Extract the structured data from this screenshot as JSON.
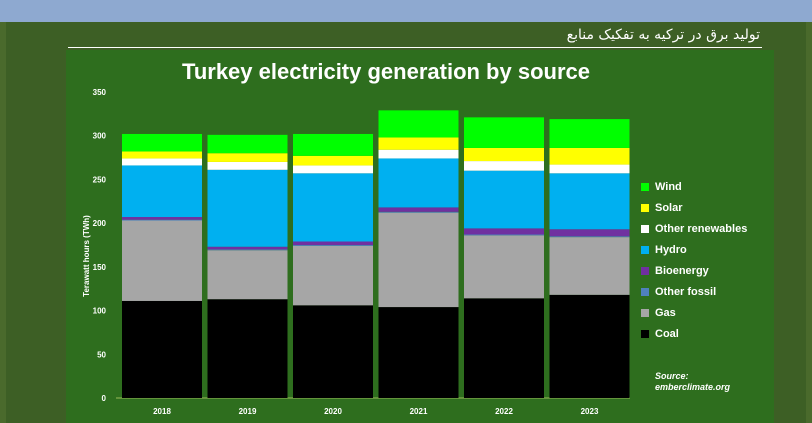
{
  "header": {
    "title": "تولید برق در ترکیه به تفکیک منابع"
  },
  "chart_data": {
    "type": "bar",
    "stacked": true,
    "title": "Turkey electricity generation by source",
    "ylabel": "Terawatt hours (TWh)",
    "xlabel": "",
    "ylim": [
      0,
      350
    ],
    "yticks": [
      0,
      50,
      100,
      150,
      200,
      250,
      300,
      350
    ],
    "categories": [
      "2018",
      "2019",
      "2020",
      "2021",
      "2022",
      "2023"
    ],
    "series": [
      {
        "name": "Coal",
        "color": "#000000",
        "values": [
          111,
          113,
          106,
          104,
          114,
          118
        ]
      },
      {
        "name": "Gas",
        "color": "#a6a6a6",
        "values": [
          92,
          56,
          68,
          108,
          72,
          66
        ]
      },
      {
        "name": "Other fossil",
        "color": "#4f81bd",
        "values": [
          1,
          1,
          1,
          1,
          1,
          1
        ]
      },
      {
        "name": "Bioenergy",
        "color": "#7030a0",
        "values": [
          3,
          3,
          4,
          5,
          7,
          8
        ]
      },
      {
        "name": "Hydro",
        "color": "#00b0f0",
        "values": [
          59,
          88,
          78,
          56,
          66,
          64
        ]
      },
      {
        "name": "Other renewables",
        "color": "#ffffff",
        "values": [
          8,
          9,
          9,
          10,
          11,
          10
        ]
      },
      {
        "name": "Solar",
        "color": "#ffff00",
        "values": [
          8,
          10,
          11,
          14,
          15,
          19
        ]
      },
      {
        "name": "Wind",
        "color": "#00ff00",
        "values": [
          20,
          21,
          25,
          31,
          35,
          33
        ]
      }
    ],
    "grid": false,
    "legend_position": "right",
    "source": [
      "Source:",
      "emberclimate.org"
    ]
  }
}
